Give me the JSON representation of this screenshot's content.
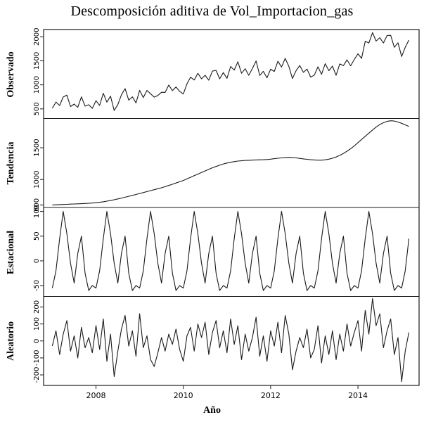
{
  "title": "Descomposición aditiva de Vol_Importacion_gas",
  "xlabel": "Año",
  "chart_data": {
    "type": "line",
    "title": "Descomposición aditiva de Vol_Importacion_gas",
    "xlabel": "Año",
    "line_color": "#1a1a1a",
    "x_start": 2007.0,
    "x_step": 0.0833333,
    "n_points": 99,
    "x_range": [
      2006.8,
      2015.4
    ],
    "x_ticks": [
      2008,
      2010,
      2012,
      2014
    ],
    "observed_rule": "observed[i] = trend[i] + seasonal_pattern_jan_dec[i % 12] + random[i]",
    "panels": [
      {
        "label": "Observado",
        "series": "observed",
        "range": [
          300,
          2150
        ],
        "ticks": [
          500,
          1000,
          1500,
          2000
        ]
      },
      {
        "label": "Tendencia",
        "series": "trend",
        "range": [
          560,
          1960
        ],
        "ticks": [
          600,
          1000,
          1500
        ]
      },
      {
        "label": "Estacional",
        "series": "seasonal",
        "range": [
          -72,
          108
        ],
        "ticks": [
          -50,
          0,
          50,
          100
        ]
      },
      {
        "label": "Aleatorio",
        "series": "random",
        "range": [
          -262,
          262
        ],
        "ticks": [
          -200,
          -100,
          0,
          100,
          200
        ]
      }
    ],
    "seasonal_pattern_jan_dec": [
      -55,
      -20,
      45,
      100,
      55,
      -5,
      -45,
      15,
      50,
      -25,
      -60,
      -50
    ],
    "trend": [
      600,
      602,
      605,
      608,
      610,
      613,
      615,
      618,
      620,
      623,
      626,
      630,
      635,
      642,
      650,
      660,
      670,
      682,
      695,
      708,
      722,
      736,
      750,
      765,
      780,
      795,
      810,
      825,
      840,
      855,
      870,
      888,
      906,
      925,
      945,
      965,
      985,
      1010,
      1035,
      1060,
      1085,
      1110,
      1135,
      1160,
      1185,
      1205,
      1225,
      1245,
      1260,
      1272,
      1282,
      1290,
      1295,
      1300,
      1303,
      1306,
      1308,
      1310,
      1312,
      1315,
      1320,
      1328,
      1335,
      1340,
      1345,
      1348,
      1345,
      1340,
      1332,
      1325,
      1318,
      1312,
      1308,
      1305,
      1305,
      1310,
      1320,
      1335,
      1355,
      1380,
      1410,
      1445,
      1485,
      1530,
      1580,
      1630,
      1680,
      1730,
      1780,
      1825,
      1865,
      1895,
      1915,
      1925,
      1920,
      1905,
      1885,
      1860,
      1835
    ],
    "random": [
      -30,
      60,
      -80,
      40,
      120,
      -60,
      30,
      -100,
      80,
      -40,
      20,
      -70,
      90,
      -50,
      130,
      -120,
      40,
      -210,
      -60,
      70,
      150,
      -30,
      60,
      -90,
      160,
      -40,
      30,
      -110,
      -150,
      -70,
      20,
      -60,
      40,
      -20,
      70,
      -50,
      -120,
      30,
      80,
      -60,
      100,
      20,
      110,
      -80,
      50,
      120,
      -40,
      60,
      -70,
      130,
      -20,
      90,
      -110,
      40,
      -60,
      20,
      140,
      -90,
      30,
      -120,
      60,
      -30,
      110,
      -70,
      150,
      40,
      -170,
      -60,
      20,
      -40,
      70,
      -100,
      -50,
      90,
      -130,
      30,
      -80,
      60,
      -110,
      40,
      -60,
      100,
      -30,
      50,
      120,
      -60,
      180,
      40,
      250,
      90,
      160,
      -40,
      60,
      130,
      -80,
      20,
      -240,
      -60,
      50
    ]
  }
}
